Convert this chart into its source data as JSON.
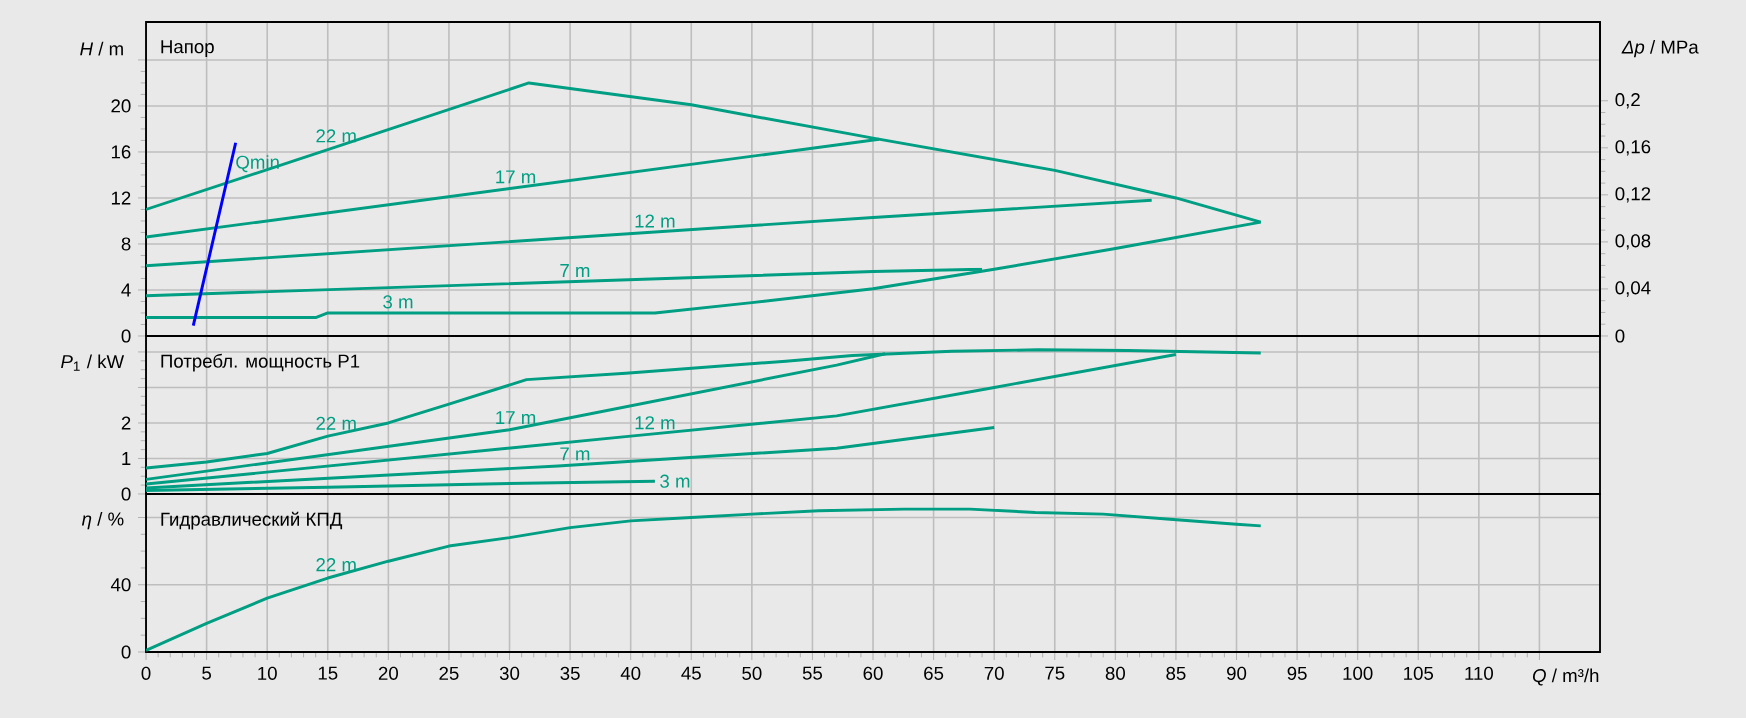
{
  "chart_data": [
    {
      "type": "line",
      "title": "Напор",
      "ylabel": "*H* / m",
      "y2label": "*Δp* / MPa",
      "xlim": [
        0,
        120
      ],
      "xticks": [
        0,
        5,
        10,
        15,
        20,
        25,
        30,
        35,
        40,
        45,
        50,
        55,
        60,
        65,
        70,
        75,
        80,
        85,
        90,
        95,
        100,
        105,
        110,
        115
      ],
      "ylim": [
        0,
        27.3
      ],
      "yticks": [
        0,
        4,
        8,
        12,
        16,
        20,
        {
          "value": 24,
          "label": null
        }
      ],
      "y2lim": [
        0,
        0.267
      ],
      "y2ticks": [
        0,
        {
          "value": 0.04,
          "label": "0,04"
        },
        {
          "value": 0.08,
          "label": "0,08"
        },
        {
          "value": 0.12,
          "label": "0,12"
        },
        {
          "value": 0.16,
          "label": "0,16"
        },
        {
          "value": 0.2,
          "label": "0,2"
        }
      ],
      "grid": true,
      "tick_labels": "y",
      "marker": "none",
      "series": [
        {
          "name": "22 m",
          "color": "#009e82",
          "x": [
            0,
            15,
            31.6,
            45,
            60,
            75,
            85,
            92
          ],
          "values": [
            11,
            16.2,
            22,
            20.1,
            17.2,
            14.4,
            12,
            9.9
          ]
        },
        {
          "name": "3 m",
          "color": "#009e82",
          "x": [
            0,
            14,
            15,
            42,
            50,
            60,
            70,
            80,
            92
          ],
          "values": [
            1.6,
            1.6,
            2,
            2,
            2.9,
            4.1,
            5.8,
            7.6,
            9.9
          ]
        },
        {
          "name": "17 m",
          "color": "#009e82",
          "x": [
            0,
            60.5
          ],
          "values": [
            8.6,
            17.1
          ]
        },
        {
          "name": "12 m",
          "color": "#009e82",
          "x": [
            0,
            60,
            83
          ],
          "values": [
            6.1,
            10.3,
            11.8
          ]
        },
        {
          "name": "7 m",
          "color": "#009e82",
          "x": [
            0,
            60,
            69
          ],
          "values": [
            3.5,
            5.6,
            5.8
          ]
        },
        {
          "name": "Qmin",
          "color": "#0000ff",
          "x": [
            3.9,
            7.4
          ],
          "values": [
            0.9,
            16.8
          ]
        }
      ]
    },
    {
      "type": "line",
      "title": "Потребл. мощность P1",
      "ylabel": "*P*$_{1}$ / kW",
      "xlim": [
        0,
        120
      ],
      "xticks": [
        0,
        5,
        10,
        15,
        20,
        25,
        30,
        35,
        40,
        45,
        50,
        55,
        60,
        65,
        70,
        75,
        80,
        85,
        90,
        95,
        100,
        105,
        110,
        115
      ],
      "ylim": [
        0,
        4.45
      ],
      "yticks": [
        0,
        1,
        2,
        {
          "value": 3,
          "label": null
        },
        {
          "value": 4,
          "label": null
        }
      ],
      "grid": true,
      "tick_labels": "y",
      "marker": "none",
      "series": [
        {
          "name": "22 m",
          "color": "#009e82",
          "x": [
            0,
            5,
            10,
            15,
            20,
            25,
            31.4,
            39.6,
            52.8,
            58.3,
            66.5,
            73.6,
            81,
            92
          ],
          "values": [
            0.73,
            0.9,
            1.14,
            1.63,
            2,
            2.53,
            3.22,
            3.4,
            3.74,
            3.9,
            4.02,
            4.06,
            4.04,
            3.97
          ]
        },
        {
          "name": "17 m",
          "color": "#009e82",
          "x": [
            0,
            30,
            57,
            61
          ],
          "values": [
            0.41,
            1.81,
            3.63,
            3.95
          ]
        },
        {
          "name": "12 m",
          "color": "#009e82",
          "x": [
            0,
            40,
            57,
            70,
            85
          ],
          "values": [
            0.28,
            1.63,
            2.2,
            3,
            3.93
          ]
        },
        {
          "name": "7 m",
          "color": "#009e82",
          "x": [
            0,
            34,
            57,
            70
          ],
          "values": [
            0.17,
            0.79,
            1.29,
            1.87
          ]
        },
        {
          "name": "3 m",
          "color": "#009e82",
          "x": [
            0,
            15,
            29,
            42
          ],
          "values": [
            0.1,
            0.19,
            0.29,
            0.36
          ]
        }
      ]
    },
    {
      "type": "line",
      "title": "Гидравлический КПД",
      "ylabel": "*η* / %",
      "xlabel": "*Q* / m³/h",
      "xlim": [
        0,
        120
      ],
      "xticks": [
        0,
        5,
        10,
        15,
        20,
        25,
        30,
        35,
        40,
        45,
        50,
        55,
        60,
        65,
        70,
        75,
        80,
        85,
        90,
        95,
        100,
        105,
        110,
        {
          "value": 115,
          "label": null
        }
      ],
      "ylim": [
        0,
        94
      ],
      "yticks": [
        0,
        40,
        {
          "value": 80,
          "label": null
        }
      ],
      "grid": true,
      "marker": "none",
      "series": [
        {
          "name": "22 m",
          "color": "#009e82",
          "x": [
            0,
            5,
            10,
            15,
            20,
            25,
            30,
            35,
            40,
            45,
            50,
            55.5,
            62.6,
            68,
            73.4,
            79,
            84.5,
            90,
            92
          ],
          "values": [
            1,
            17,
            32,
            44,
            54,
            63,
            68,
            74,
            78,
            80,
            82,
            84,
            85,
            85,
            83,
            82,
            79,
            76,
            75
          ]
        }
      ]
    }
  ]
}
